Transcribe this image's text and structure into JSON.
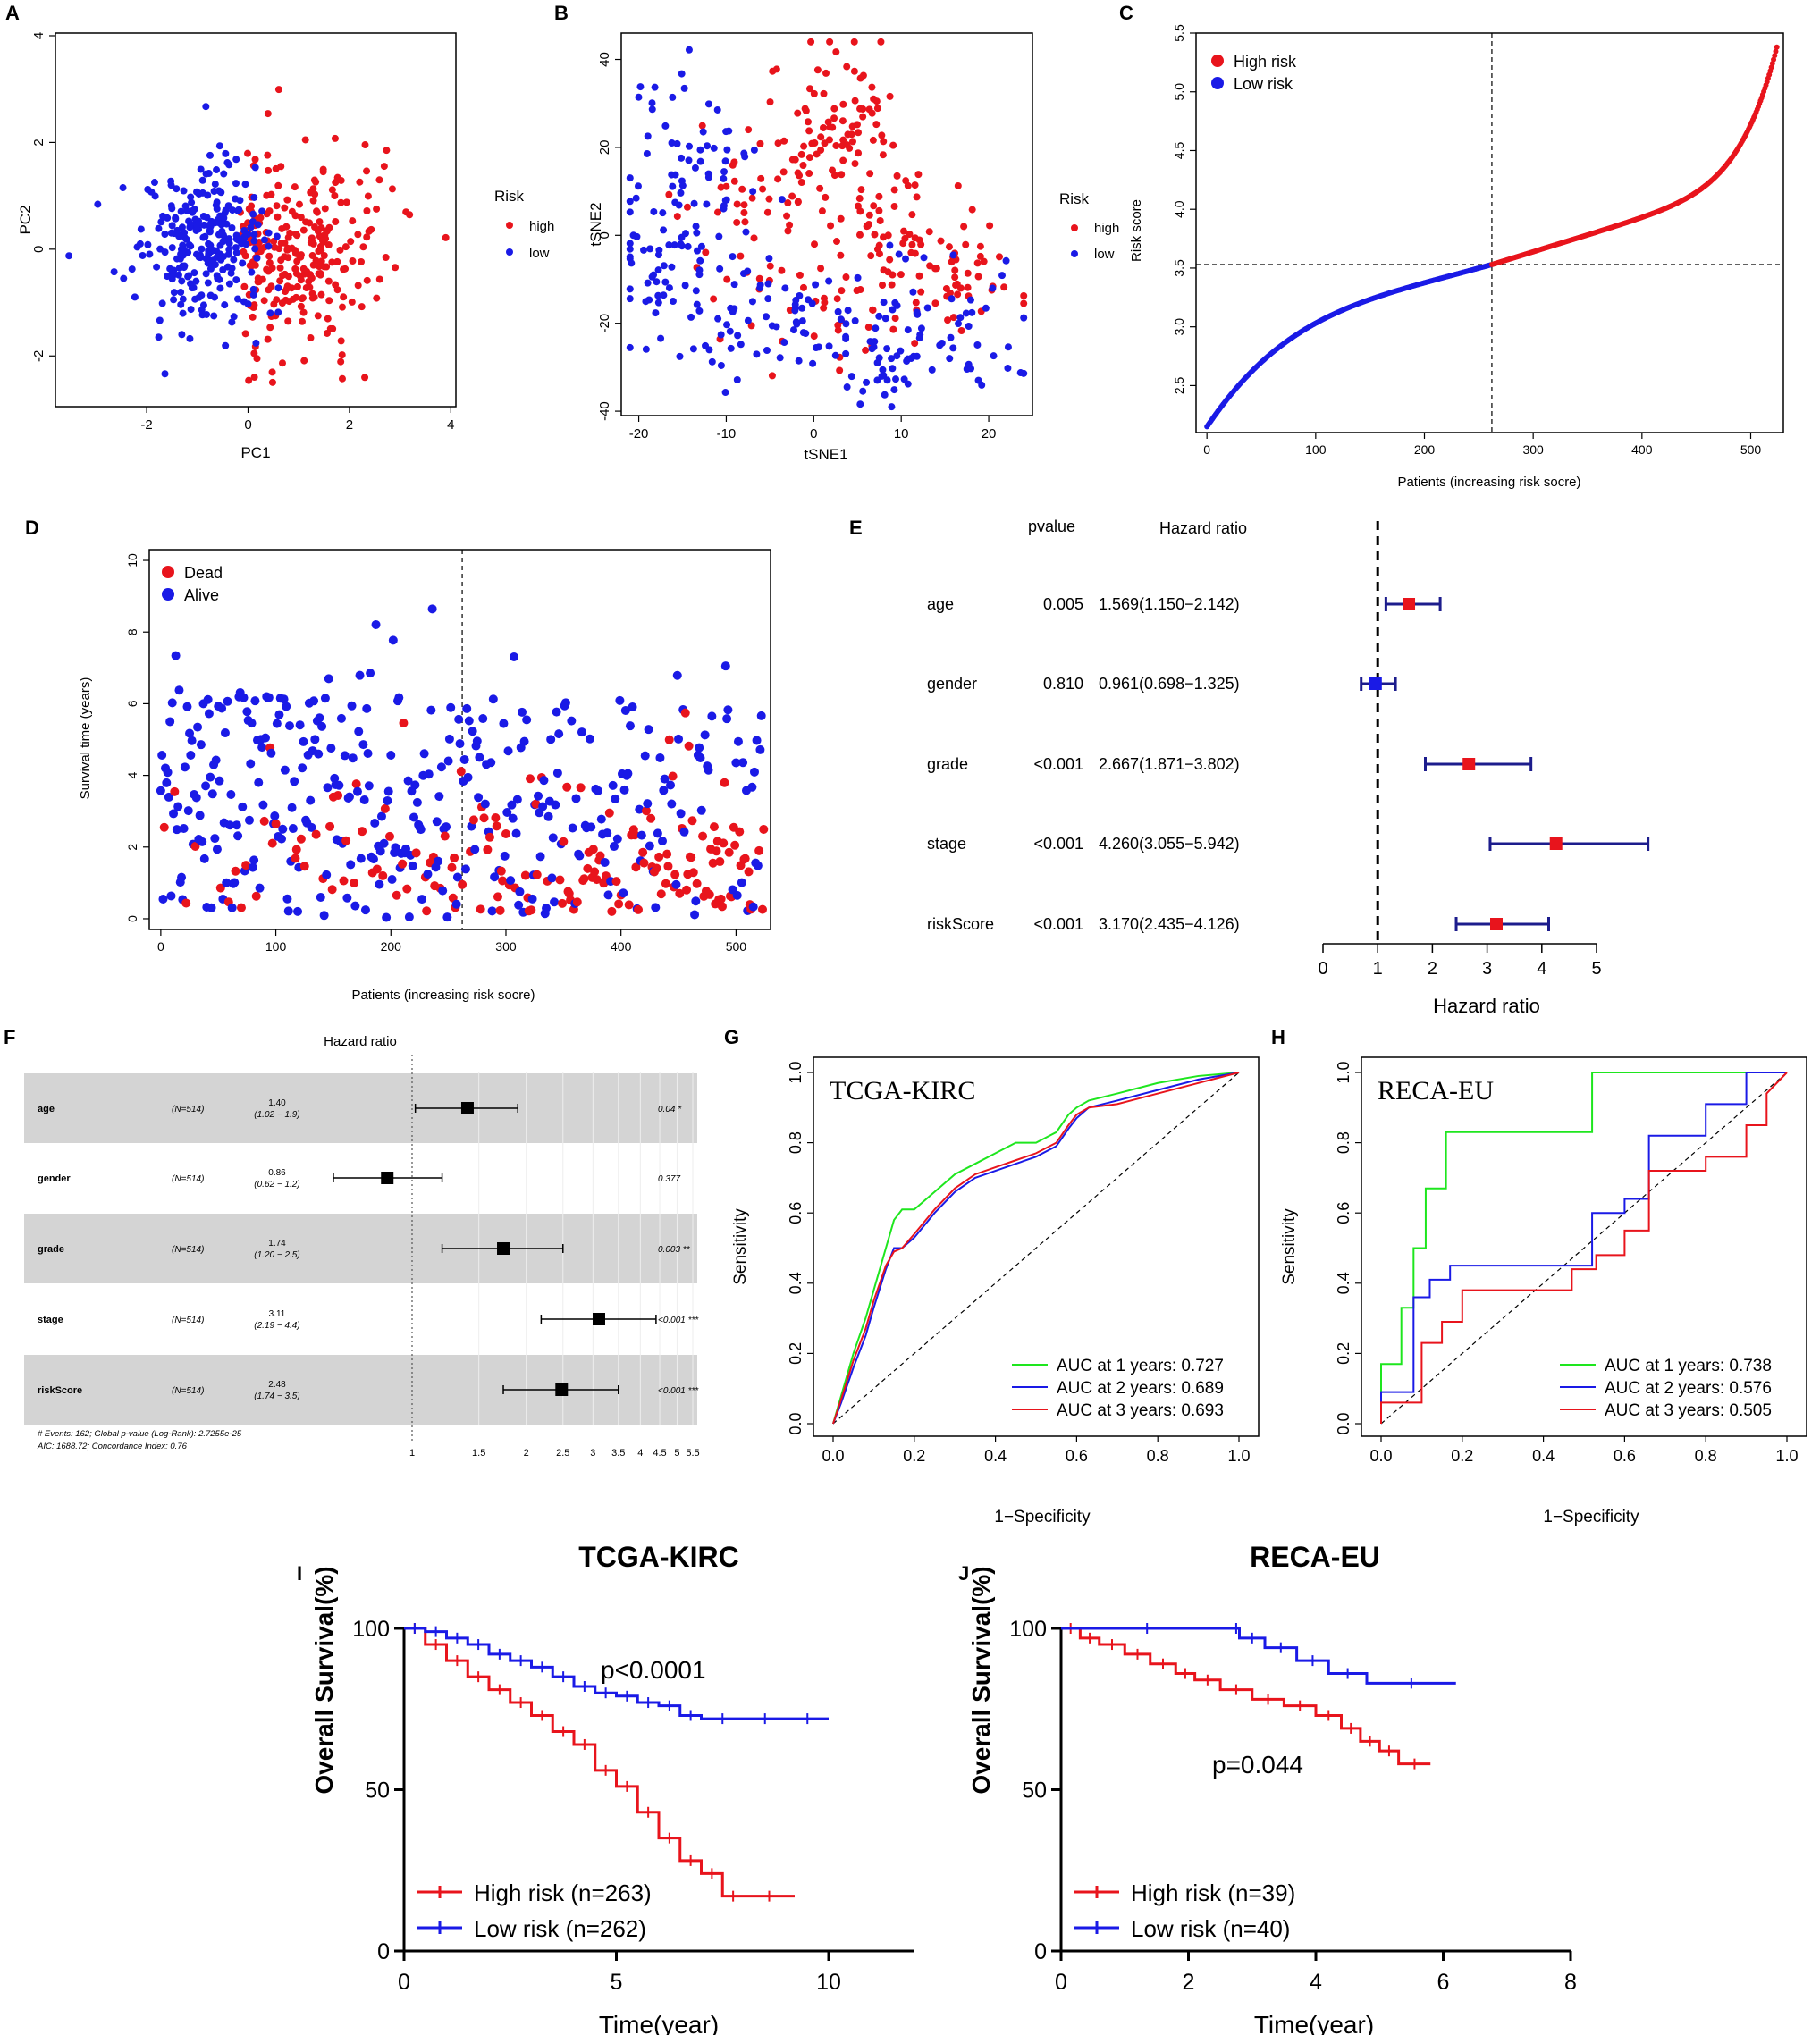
{
  "figure": {
    "colors": {
      "red": "#e8141c",
      "blue": "#1a1ae6",
      "green": "#1ee61e",
      "navy": "#1c1c8c",
      "grey": "#d4d4d4"
    }
  },
  "chart_data": [
    {
      "panel": "A",
      "type": "scatter",
      "xlabel": "PC1",
      "ylabel": "PC2",
      "xlim": [
        -3.8,
        4.1
      ],
      "ylim": [
        -2.95,
        4.05
      ],
      "xticks": [
        -2,
        0,
        2,
        4
      ],
      "yticks": [
        -2,
        0,
        2,
        4
      ],
      "legend": {
        "title": "Risk",
        "entries": [
          "high",
          "low"
        ],
        "position": "right-outside"
      },
      "series": [
        {
          "name": "high",
          "color": "red",
          "n": 263,
          "center": [
            1.0,
            -0.15
          ],
          "spread": [
            0.75,
            0.95
          ]
        },
        {
          "name": "low",
          "color": "blue",
          "n": 262,
          "center": [
            -0.9,
            0.15
          ],
          "spread": [
            0.65,
            0.8
          ]
        }
      ]
    },
    {
      "panel": "B",
      "type": "scatter",
      "xlabel": "tSNE1",
      "ylabel": "tSNE2",
      "xlim": [
        -22,
        25
      ],
      "ylim": [
        -41,
        46
      ],
      "xticks": [
        -20,
        -10,
        0,
        10,
        20
      ],
      "yticks": [
        -40,
        -20,
        0,
        20,
        40
      ],
      "legend": {
        "title": "Risk",
        "entries": [
          "high",
          "low"
        ],
        "position": "right-outside"
      },
      "series": [
        {
          "name": "high",
          "color": "red"
        },
        {
          "name": "low",
          "color": "blue"
        }
      ]
    },
    {
      "panel": "C",
      "type": "scatter",
      "xlabel": "Patients (increasing risk socre)",
      "ylabel": "Risk score",
      "xlim": [
        -10,
        530
      ],
      "ylim": [
        2.1,
        5.5
      ],
      "xticks": [
        0,
        100,
        200,
        300,
        400,
        500
      ],
      "yticks": [
        2.5,
        3.0,
        3.5,
        4.0,
        4.5,
        5.0,
        5.5
      ],
      "cutoff_patient": 262,
      "cutoff_score": 3.53,
      "legend": {
        "entries": [
          "High risk",
          "Low risk"
        ],
        "position": "top-left"
      },
      "series": [
        {
          "name": "High risk",
          "color": "red",
          "n": 263
        },
        {
          "name": "Low risk",
          "color": "blue",
          "n": 262
        }
      ]
    },
    {
      "panel": "D",
      "type": "scatter",
      "xlabel": "Patients (increasing risk socre)",
      "ylabel": "Survival time (years)",
      "xlim": [
        -10,
        530
      ],
      "ylim": [
        -0.3,
        10.3
      ],
      "xticks": [
        0,
        100,
        200,
        300,
        400,
        500
      ],
      "yticks": [
        0,
        2,
        4,
        6,
        8,
        10
      ],
      "cutoff_patient": 262,
      "legend": {
        "entries": [
          "Dead",
          "Alive"
        ],
        "position": "top-left"
      },
      "series": [
        {
          "name": "Dead",
          "color": "red"
        },
        {
          "name": "Alive",
          "color": "blue"
        }
      ]
    },
    {
      "panel": "E",
      "type": "forest",
      "title_pvalue": "pvalue",
      "title_hr": "Hazard ratio",
      "xlabel": "Hazard ratio",
      "xlim": [
        0,
        5
      ],
      "xticks": [
        0,
        1,
        2,
        3,
        4,
        5
      ],
      "ref": 1,
      "rows": [
        {
          "label": "age",
          "pvalue": "0.005",
          "hr_text": "1.569(1.150−2.142)",
          "hr": 1.569,
          "lo": 1.15,
          "hi": 2.142,
          "color": "red"
        },
        {
          "label": "gender",
          "pvalue": "0.810",
          "hr_text": "0.961(0.698−1.325)",
          "hr": 0.961,
          "lo": 0.698,
          "hi": 1.325,
          "color": "blue"
        },
        {
          "label": "grade",
          "pvalue": "<0.001",
          "hr_text": "2.667(1.871−3.802)",
          "hr": 2.667,
          "lo": 1.871,
          "hi": 3.802,
          "color": "red"
        },
        {
          "label": "stage",
          "pvalue": "<0.001",
          "hr_text": "4.260(3.055−5.942)",
          "hr": 4.26,
          "lo": 3.055,
          "hi": 5.942,
          "color": "red"
        },
        {
          "label": "riskScore",
          "pvalue": "<0.001",
          "hr_text": "3.170(2.435−4.126)",
          "hr": 3.17,
          "lo": 2.435,
          "hi": 4.126,
          "color": "red"
        }
      ]
    },
    {
      "panel": "F",
      "type": "forest",
      "title": "Hazard ratio",
      "scale": "log",
      "ref": 1,
      "xticks": [
        "1",
        "1.5",
        "2",
        "2.5",
        "3",
        "3.5",
        "4",
        "4.5",
        "5",
        "5.5"
      ],
      "footer1": "# Events: 162; Global p-value (Log-Rank): 2.7255e-25",
      "footer2": "AIC: 1688.72; Concordance Index: 0.76",
      "rows": [
        {
          "label": "age",
          "n": "(N=514)",
          "hr_text": "1.40",
          "ci_text": "(1.02 − 1.9)",
          "hr": 1.4,
          "lo": 1.02,
          "hi": 1.9,
          "p": "0.04 *"
        },
        {
          "label": "gender",
          "n": "(N=514)",
          "hr_text": "0.86",
          "ci_text": "(0.62 − 1.2)",
          "hr": 0.86,
          "lo": 0.62,
          "hi": 1.2,
          "p": "0.377"
        },
        {
          "label": "grade",
          "n": "(N=514)",
          "hr_text": "1.74",
          "ci_text": "(1.20 − 2.5)",
          "hr": 1.74,
          "lo": 1.2,
          "hi": 2.5,
          "p": "0.003 **"
        },
        {
          "label": "stage",
          "n": "(N=514)",
          "hr_text": "3.11",
          "ci_text": "(2.19 − 4.4)",
          "hr": 3.11,
          "lo": 2.19,
          "hi": 4.4,
          "p": "<0.001 ***"
        },
        {
          "label": "riskScore",
          "n": "(N=514)",
          "hr_text": "2.48",
          "ci_text": "(1.74 − 3.5)",
          "hr": 2.48,
          "lo": 1.74,
          "hi": 3.5,
          "p": "<0.001 ***"
        }
      ]
    },
    {
      "panel": "G",
      "type": "line",
      "title": "TCGA-KIRC",
      "xlabel": "1−Specificity",
      "ylabel": "Sensitivity",
      "xlim": [
        0,
        1
      ],
      "ylim": [
        0,
        1
      ],
      "ticks": [
        "0.0",
        "0.2",
        "0.4",
        "0.6",
        "0.8",
        "1.0"
      ],
      "series": [
        {
          "name": "AUC at 1 years: 0.727",
          "color": "green",
          "x": [
            0,
            0.02,
            0.05,
            0.08,
            0.1,
            0.13,
            0.15,
            0.17,
            0.2,
            0.25,
            0.3,
            0.35,
            0.4,
            0.45,
            0.5,
            0.55,
            0.58,
            0.6,
            0.63,
            0.7,
            0.8,
            0.9,
            1.0
          ],
          "y": [
            0,
            0.08,
            0.2,
            0.3,
            0.38,
            0.5,
            0.58,
            0.61,
            0.61,
            0.66,
            0.71,
            0.74,
            0.77,
            0.8,
            0.8,
            0.83,
            0.88,
            0.9,
            0.92,
            0.94,
            0.97,
            0.99,
            1.0
          ]
        },
        {
          "name": "AUC at 2 years: 0.689",
          "color": "blue",
          "x": [
            0,
            0.02,
            0.05,
            0.08,
            0.1,
            0.13,
            0.15,
            0.17,
            0.2,
            0.25,
            0.3,
            0.35,
            0.4,
            0.45,
            0.5,
            0.55,
            0.58,
            0.6,
            0.63,
            0.7,
            0.8,
            0.9,
            1.0
          ],
          "y": [
            0,
            0.06,
            0.16,
            0.25,
            0.33,
            0.44,
            0.5,
            0.5,
            0.53,
            0.6,
            0.66,
            0.7,
            0.72,
            0.74,
            0.76,
            0.79,
            0.84,
            0.87,
            0.9,
            0.92,
            0.95,
            0.98,
            1.0
          ]
        },
        {
          "name": "AUC at 3 years: 0.693",
          "color": "red",
          "x": [
            0,
            0.02,
            0.05,
            0.08,
            0.1,
            0.13,
            0.15,
            0.17,
            0.2,
            0.25,
            0.3,
            0.35,
            0.4,
            0.45,
            0.5,
            0.55,
            0.58,
            0.6,
            0.63,
            0.7,
            0.8,
            0.9,
            1.0
          ],
          "y": [
            0,
            0.07,
            0.18,
            0.27,
            0.35,
            0.45,
            0.49,
            0.5,
            0.54,
            0.61,
            0.67,
            0.71,
            0.73,
            0.75,
            0.77,
            0.8,
            0.85,
            0.88,
            0.9,
            0.91,
            0.94,
            0.97,
            1.0
          ]
        }
      ]
    },
    {
      "panel": "H",
      "type": "line",
      "title": "RECA-EU",
      "xlabel": "1−Specificity",
      "ylabel": "Sensitivity",
      "xlim": [
        0,
        1
      ],
      "ylim": [
        0,
        1
      ],
      "ticks": [
        "0.0",
        "0.2",
        "0.4",
        "0.6",
        "0.8",
        "1.0"
      ],
      "series": [
        {
          "name": "AUC at 1 years: 0.738",
          "color": "green",
          "x": [
            0,
            0,
            0.05,
            0.05,
            0.08,
            0.08,
            0.11,
            0.11,
            0.16,
            0.16,
            0.52,
            0.52,
            0.66,
            0.66,
            1.0
          ],
          "y": [
            0,
            0.17,
            0.17,
            0.33,
            0.33,
            0.5,
            0.5,
            0.67,
            0.67,
            0.83,
            0.83,
            1.0,
            1.0,
            1.0,
            1.0
          ]
        },
        {
          "name": "AUC at 2 years: 0.576",
          "color": "blue",
          "x": [
            0,
            0,
            0.08,
            0.08,
            0.12,
            0.12,
            0.17,
            0.17,
            0.52,
            0.52,
            0.6,
            0.6,
            0.66,
            0.66,
            0.8,
            0.8,
            0.9,
            0.9,
            1.0
          ],
          "y": [
            0,
            0.09,
            0.09,
            0.36,
            0.36,
            0.41,
            0.41,
            0.45,
            0.45,
            0.6,
            0.6,
            0.64,
            0.64,
            0.82,
            0.82,
            0.91,
            0.91,
            1.0,
            1.0
          ]
        },
        {
          "name": "AUC at 3 years: 0.505",
          "color": "red",
          "x": [
            0,
            0,
            0.1,
            0.1,
            0.15,
            0.15,
            0.2,
            0.2,
            0.47,
            0.47,
            0.53,
            0.53,
            0.6,
            0.6,
            0.66,
            0.66,
            0.8,
            0.8,
            0.9,
            0.9,
            0.95,
            0.95,
            1.0
          ],
          "y": [
            0,
            0.06,
            0.06,
            0.23,
            0.23,
            0.29,
            0.29,
            0.38,
            0.38,
            0.44,
            0.44,
            0.48,
            0.48,
            0.55,
            0.55,
            0.72,
            0.72,
            0.76,
            0.76,
            0.85,
            0.85,
            0.94,
            1.0
          ]
        }
      ]
    },
    {
      "panel": "I",
      "type": "line",
      "title": "TCGA-KIRC",
      "xlabel": "Time(year)",
      "ylabel": "Overall Survival(%)",
      "xlim": [
        0,
        12
      ],
      "ylim": [
        0,
        100
      ],
      "xticks": [
        0,
        5,
        10
      ],
      "yticks": [
        0,
        50,
        100
      ],
      "pvalue": "p<0.0001",
      "series": [
        {
          "name": "High risk (n=263)",
          "color": "red",
          "t": [
            0,
            0.5,
            1,
            1.5,
            2,
            2.5,
            3,
            3.5,
            4,
            4.5,
            5,
            5.5,
            6,
            6.5,
            7,
            7.5,
            8,
            9.2
          ],
          "s": [
            100,
            95,
            90,
            85,
            81,
            77,
            73,
            68,
            64,
            56,
            51,
            43,
            35,
            28,
            24,
            17,
            17,
            17
          ]
        },
        {
          "name": "Low risk (n=262)",
          "color": "blue",
          "t": [
            0,
            0.5,
            1,
            1.5,
            2,
            2.5,
            3,
            3.5,
            4,
            4.5,
            5,
            5.5,
            6,
            6.5,
            7,
            8,
            9,
            10
          ],
          "s": [
            100,
            99,
            97,
            95,
            92,
            90,
            88,
            85,
            82,
            80,
            79,
            77,
            76,
            73,
            72,
            72,
            72,
            72
          ]
        }
      ]
    },
    {
      "panel": "J",
      "type": "line",
      "title": "RECA-EU",
      "xlabel": "Time(year)",
      "ylabel": "Overall Survival(%)",
      "xlim": [
        0,
        8
      ],
      "ylim": [
        0,
        100
      ],
      "xticks": [
        0,
        2,
        4,
        6,
        8
      ],
      "yticks": [
        0,
        50,
        100
      ],
      "pvalue": "p=0.044",
      "series": [
        {
          "name": "High risk (n=39)",
          "color": "red",
          "t": [
            0,
            0.3,
            0.6,
            1.0,
            1.4,
            1.8,
            2.1,
            2.5,
            3.0,
            3.5,
            4.0,
            4.4,
            4.7,
            5.0,
            5.3,
            5.8
          ],
          "s": [
            100,
            97,
            95,
            92,
            89,
            86,
            84,
            81,
            78,
            76,
            73,
            69,
            65,
            62,
            58,
            58
          ]
        },
        {
          "name": "Low risk (n=40)",
          "color": "blue",
          "t": [
            0,
            2.7,
            2.8,
            3.2,
            3.7,
            4.2,
            4.8,
            6.2
          ],
          "s": [
            100,
            100,
            97,
            94,
            90,
            86,
            83,
            83
          ]
        }
      ]
    }
  ],
  "text": {
    "A": {
      "letter": "A",
      "xlabel": "PC1",
      "ylabel": "PC2",
      "legend_title": "Risk",
      "leg1": "high",
      "leg2": "low"
    },
    "B": {
      "letter": "B",
      "xlabel": "tSNE1",
      "ylabel": "tSNE2",
      "legend_title": "Risk",
      "leg1": "high",
      "leg2": "low"
    },
    "C": {
      "letter": "C",
      "xlabel": "Patients (increasing risk socre)",
      "ylabel": "Risk score",
      "leg1": "High risk",
      "leg2": "Low risk"
    },
    "D": {
      "letter": "D",
      "xlabel": "Patients (increasing risk socre)",
      "ylabel": "Survival time (years)",
      "leg1": "Dead",
      "leg2": "Alive"
    },
    "E": {
      "letter": "E",
      "col_p": "pvalue",
      "col_hr": "Hazard ratio",
      "xlabel": "Hazard ratio"
    },
    "F": {
      "letter": "F",
      "title": "Hazard ratio"
    },
    "G": {
      "letter": "G",
      "xlabel": "1−Specificity",
      "ylabel": "Sensitivity",
      "title": "TCGA-KIRC"
    },
    "H": {
      "letter": "H",
      "xlabel": "1−Specificity",
      "ylabel": "Sensitivity",
      "title": "RECA-EU"
    },
    "I": {
      "letter": "I",
      "title": "TCGA-KIRC",
      "xlabel": "Time(year)",
      "ylabel": "Overall Survival(%)",
      "pvalue": "p<0.0001"
    },
    "J": {
      "letter": "J",
      "title": "RECA-EU",
      "xlabel": "Time(year)",
      "ylabel": "Overall Survival(%)",
      "pvalue": "p=0.044"
    }
  }
}
